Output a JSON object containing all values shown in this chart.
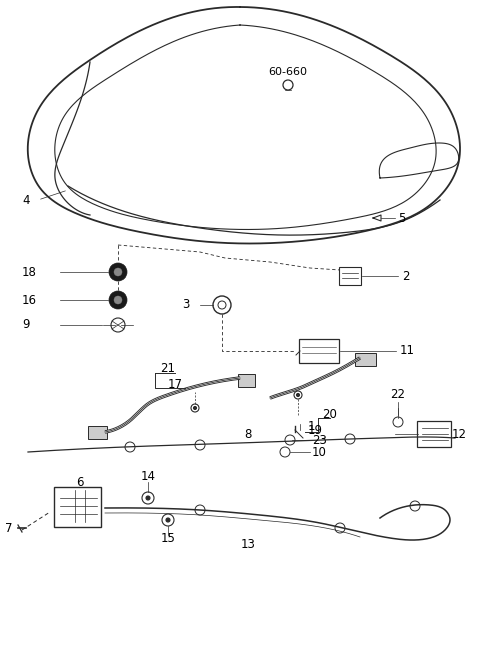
{
  "bg_color": "#ffffff",
  "line_color": "#2a2a2a",
  "label_color": "#000000",
  "fig_width": 4.8,
  "fig_height": 6.5,
  "dpi": 100
}
